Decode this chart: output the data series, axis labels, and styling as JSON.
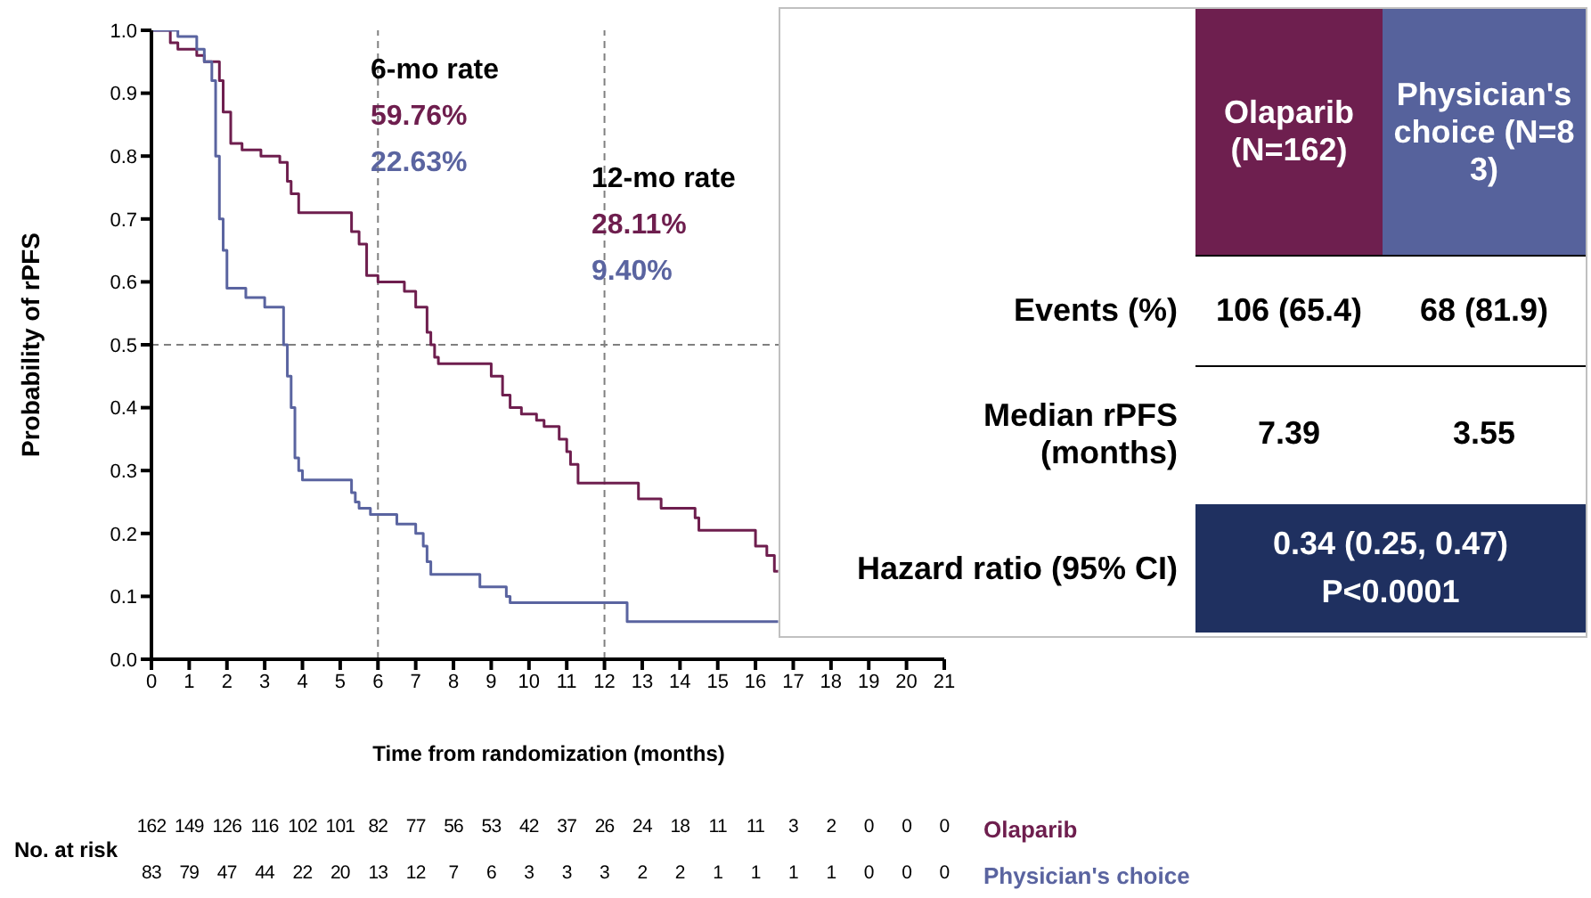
{
  "chart_data": [
    {
      "type": "step",
      "ylabel": "Probability of rPFS",
      "xlabel": "Time from randomization (months)",
      "xlim": [
        0,
        21
      ],
      "xticks": [
        0,
        1,
        2,
        3,
        4,
        5,
        6,
        7,
        8,
        9,
        10,
        11,
        12,
        13,
        14,
        15,
        16,
        17,
        18,
        19,
        20,
        21
      ],
      "ylim": [
        0,
        1
      ],
      "yticks": [
        {
          "value": 0,
          "label": "0.0"
        },
        {
          "value": 0.1,
          "label": "0.1"
        },
        {
          "value": 0.2,
          "label": "0.2"
        },
        {
          "value": 0.3,
          "label": "0.3"
        },
        {
          "value": 0.4,
          "label": "0.4"
        },
        {
          "value": 0.5,
          "label": "0.5"
        },
        {
          "value": 0.6,
          "label": "0.6"
        },
        {
          "value": 0.7,
          "label": "0.7"
        },
        {
          "value": 0.8,
          "label": "0.8"
        },
        {
          "value": 0.9,
          "label": "0.9"
        },
        {
          "value": 1,
          "label": "1.0"
        }
      ],
      "series": [
        {
          "name": "Olaparib",
          "color": "#6e1e4e",
          "x": [
            0,
            0.5,
            0.7,
            1.2,
            1.4,
            1.8,
            1.9,
            2.1,
            2.4,
            2.9,
            3.4,
            3.6,
            3.7,
            3.9,
            5.3,
            5.5,
            5.7,
            6.0,
            6.7,
            7.0,
            7.3,
            7.4,
            7.5,
            7.6,
            9.0,
            9.3,
            9.5,
            9.8,
            10.2,
            10.4,
            10.8,
            11.0,
            11.1,
            11.3,
            12.9,
            13.5,
            14.4,
            14.5,
            16.0,
            16.3,
            16.5,
            16.6
          ],
          "values": [
            1,
            0.98,
            0.97,
            0.96,
            0.95,
            0.92,
            0.87,
            0.82,
            0.81,
            0.8,
            0.79,
            0.76,
            0.74,
            0.71,
            0.68,
            0.66,
            0.61,
            0.6,
            0.585,
            0.56,
            0.52,
            0.5,
            0.48,
            0.47,
            0.45,
            0.42,
            0.4,
            0.39,
            0.38,
            0.37,
            0.35,
            0.33,
            0.31,
            0.28,
            0.255,
            0.24,
            0.225,
            0.205,
            0.18,
            0.165,
            0.14,
            0.14
          ]
        },
        {
          "name": "Physician's choice",
          "color": "#5a64a0",
          "x": [
            0,
            0.7,
            1.2,
            1.4,
            1.6,
            1.7,
            1.8,
            1.9,
            2.0,
            2.5,
            3.0,
            3.5,
            3.6,
            3.7,
            3.8,
            3.9,
            4.0,
            5.3,
            5.4,
            5.5,
            5.8,
            6.5,
            7.0,
            7.2,
            7.3,
            7.4,
            8.7,
            9.4,
            9.5,
            12.6,
            16.6
          ],
          "values": [
            1,
            0.99,
            0.97,
            0.95,
            0.92,
            0.8,
            0.7,
            0.65,
            0.59,
            0.575,
            0.56,
            0.5,
            0.45,
            0.4,
            0.32,
            0.3,
            0.285,
            0.265,
            0.25,
            0.24,
            0.23,
            0.215,
            0.2,
            0.18,
            0.155,
            0.135,
            0.115,
            0.1,
            0.09,
            0.06,
            0.06
          ]
        }
      ],
      "line_style": "solid",
      "ref_lines": [
        {
          "axis": "y",
          "value": 0.5,
          "color": "#808080",
          "line_style": "dashed"
        },
        {
          "axis": "x",
          "value": 6,
          "color": "#808080",
          "line_style": "dashed"
        },
        {
          "axis": "x",
          "value": 12,
          "color": "#808080",
          "line_style": "dashed"
        }
      ],
      "annotations": [
        "6-mo rate",
        "59.76%",
        "22.63%",
        "12-mo rate",
        "28.11%",
        "9.40%",
        "No. at risk",
        "162 149 126 116 102 101 82 77 56 53 42 37 26 24 18 11 11 3 2 0 0 0",
        "83 79 47 44 22 20 13 12 7 6 3 3 3 2 2 1 1 1 1 0 0 0"
      ]
    },
    {
      "type": "other",
      "colors": [
        "#6e1f4f",
        "#56629c",
        "#1f3060"
      ],
      "annotations": [
        "Olaparib (N=162)",
        "Physician's choice (N=83)",
        "Events  (%)",
        "106 (65.4)",
        "68 (81.9)",
        "Median rPFS (months)",
        "7.39",
        "3.55",
        "Hazard ratio (95% CI)",
        "0.34 (0.25, 0.47)",
        "P<0.0001"
      ]
    }
  ]
}
